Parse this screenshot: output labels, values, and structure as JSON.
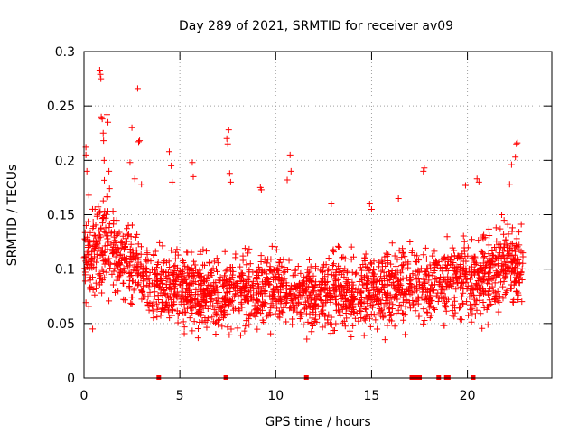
{
  "chart_data": {
    "type": "scatter",
    "title": "Day 289 of 2021, SRMTID for receiver av09",
    "xlabel": "GPS time / hours",
    "ylabel": "SRMTID / TECUs",
    "xlim": [
      0,
      24.4
    ],
    "ylim": [
      0,
      0.3
    ],
    "xticks": [
      0,
      5,
      10,
      15,
      20
    ],
    "xtick_labels": [
      "0",
      "5",
      "10",
      "15",
      "20"
    ],
    "yticks": [
      0,
      0.05,
      0.1,
      0.15,
      0.2,
      0.25,
      0.3
    ],
    "ytick_labels": [
      "0",
      "0.05",
      "0.1",
      "0.15",
      "0.2",
      "0.25",
      "0.3"
    ],
    "grid": true,
    "marker": "plus",
    "color": "#ff0000",
    "time_range_hours": [
      0,
      22.9
    ],
    "typical_value_range": [
      0.03,
      0.15
    ],
    "envelope": [
      {
        "x": 0.0,
        "lo": 0.05,
        "hi": 0.17
      },
      {
        "x": 0.5,
        "lo": 0.05,
        "hi": 0.17
      },
      {
        "x": 1.0,
        "lo": 0.06,
        "hi": 0.19
      },
      {
        "x": 2.0,
        "lo": 0.06,
        "hi": 0.16
      },
      {
        "x": 3.0,
        "lo": 0.05,
        "hi": 0.14
      },
      {
        "x": 4.0,
        "lo": 0.04,
        "hi": 0.13
      },
      {
        "x": 5.0,
        "lo": 0.03,
        "hi": 0.13
      },
      {
        "x": 6.0,
        "lo": 0.03,
        "hi": 0.13
      },
      {
        "x": 7.0,
        "lo": 0.03,
        "hi": 0.12
      },
      {
        "x": 8.0,
        "lo": 0.03,
        "hi": 0.13
      },
      {
        "x": 9.0,
        "lo": 0.03,
        "hi": 0.13
      },
      {
        "x": 10.0,
        "lo": 0.03,
        "hi": 0.14
      },
      {
        "x": 11.0,
        "lo": 0.03,
        "hi": 0.12
      },
      {
        "x": 12.0,
        "lo": 0.03,
        "hi": 0.12
      },
      {
        "x": 13.0,
        "lo": 0.03,
        "hi": 0.13
      },
      {
        "x": 14.0,
        "lo": 0.03,
        "hi": 0.13
      },
      {
        "x": 15.0,
        "lo": 0.03,
        "hi": 0.13
      },
      {
        "x": 16.0,
        "lo": 0.03,
        "hi": 0.13
      },
      {
        "x": 17.0,
        "lo": 0.04,
        "hi": 0.13
      },
      {
        "x": 18.0,
        "lo": 0.04,
        "hi": 0.13
      },
      {
        "x": 19.0,
        "lo": 0.04,
        "hi": 0.14
      },
      {
        "x": 20.0,
        "lo": 0.04,
        "hi": 0.14
      },
      {
        "x": 21.0,
        "lo": 0.04,
        "hi": 0.15
      },
      {
        "x": 22.0,
        "lo": 0.05,
        "hi": 0.16
      },
      {
        "x": 22.9,
        "lo": 0.05,
        "hi": 0.15
      }
    ],
    "outliers": [
      {
        "x": 0.1,
        "y": 0.212
      },
      {
        "x": 0.1,
        "y": 0.205
      },
      {
        "x": 0.15,
        "y": 0.19
      },
      {
        "x": 0.25,
        "y": 0.168
      },
      {
        "x": 0.45,
        "y": 0.045
      },
      {
        "x": 0.82,
        "y": 0.283
      },
      {
        "x": 0.85,
        "y": 0.279
      },
      {
        "x": 0.88,
        "y": 0.275
      },
      {
        "x": 0.9,
        "y": 0.24
      },
      {
        "x": 0.95,
        "y": 0.238
      },
      {
        "x": 1.0,
        "y": 0.225
      },
      {
        "x": 1.02,
        "y": 0.218
      },
      {
        "x": 1.05,
        "y": 0.2
      },
      {
        "x": 1.2,
        "y": 0.242
      },
      {
        "x": 1.25,
        "y": 0.235
      },
      {
        "x": 1.3,
        "y": 0.19
      },
      {
        "x": 2.4,
        "y": 0.198
      },
      {
        "x": 2.5,
        "y": 0.23
      },
      {
        "x": 2.65,
        "y": 0.183
      },
      {
        "x": 2.8,
        "y": 0.266
      },
      {
        "x": 2.85,
        "y": 0.217
      },
      {
        "x": 2.9,
        "y": 0.218
      },
      {
        "x": 3.0,
        "y": 0.178
      },
      {
        "x": 4.45,
        "y": 0.208
      },
      {
        "x": 4.55,
        "y": 0.195
      },
      {
        "x": 4.6,
        "y": 0.18
      },
      {
        "x": 5.65,
        "y": 0.198
      },
      {
        "x": 5.7,
        "y": 0.185
      },
      {
        "x": 7.45,
        "y": 0.22
      },
      {
        "x": 7.5,
        "y": 0.215
      },
      {
        "x": 7.55,
        "y": 0.228
      },
      {
        "x": 7.6,
        "y": 0.188
      },
      {
        "x": 7.65,
        "y": 0.18
      },
      {
        "x": 9.2,
        "y": 0.175
      },
      {
        "x": 9.25,
        "y": 0.173
      },
      {
        "x": 10.6,
        "y": 0.182
      },
      {
        "x": 10.75,
        "y": 0.205
      },
      {
        "x": 10.8,
        "y": 0.19
      },
      {
        "x": 12.9,
        "y": 0.16
      },
      {
        "x": 14.9,
        "y": 0.16
      },
      {
        "x": 15.0,
        "y": 0.155
      },
      {
        "x": 16.4,
        "y": 0.165
      },
      {
        "x": 17.7,
        "y": 0.19
      },
      {
        "x": 17.75,
        "y": 0.193
      },
      {
        "x": 19.9,
        "y": 0.177
      },
      {
        "x": 20.5,
        "y": 0.183
      },
      {
        "x": 20.6,
        "y": 0.18
      },
      {
        "x": 22.2,
        "y": 0.178
      },
      {
        "x": 22.3,
        "y": 0.196
      },
      {
        "x": 22.5,
        "y": 0.203
      },
      {
        "x": 22.55,
        "y": 0.215
      },
      {
        "x": 22.6,
        "y": 0.216
      }
    ],
    "zero_markers_x": [
      3.9,
      7.4,
      11.6,
      17.1,
      17.3,
      17.5,
      18.5,
      18.9,
      19.0,
      20.3
    ]
  }
}
